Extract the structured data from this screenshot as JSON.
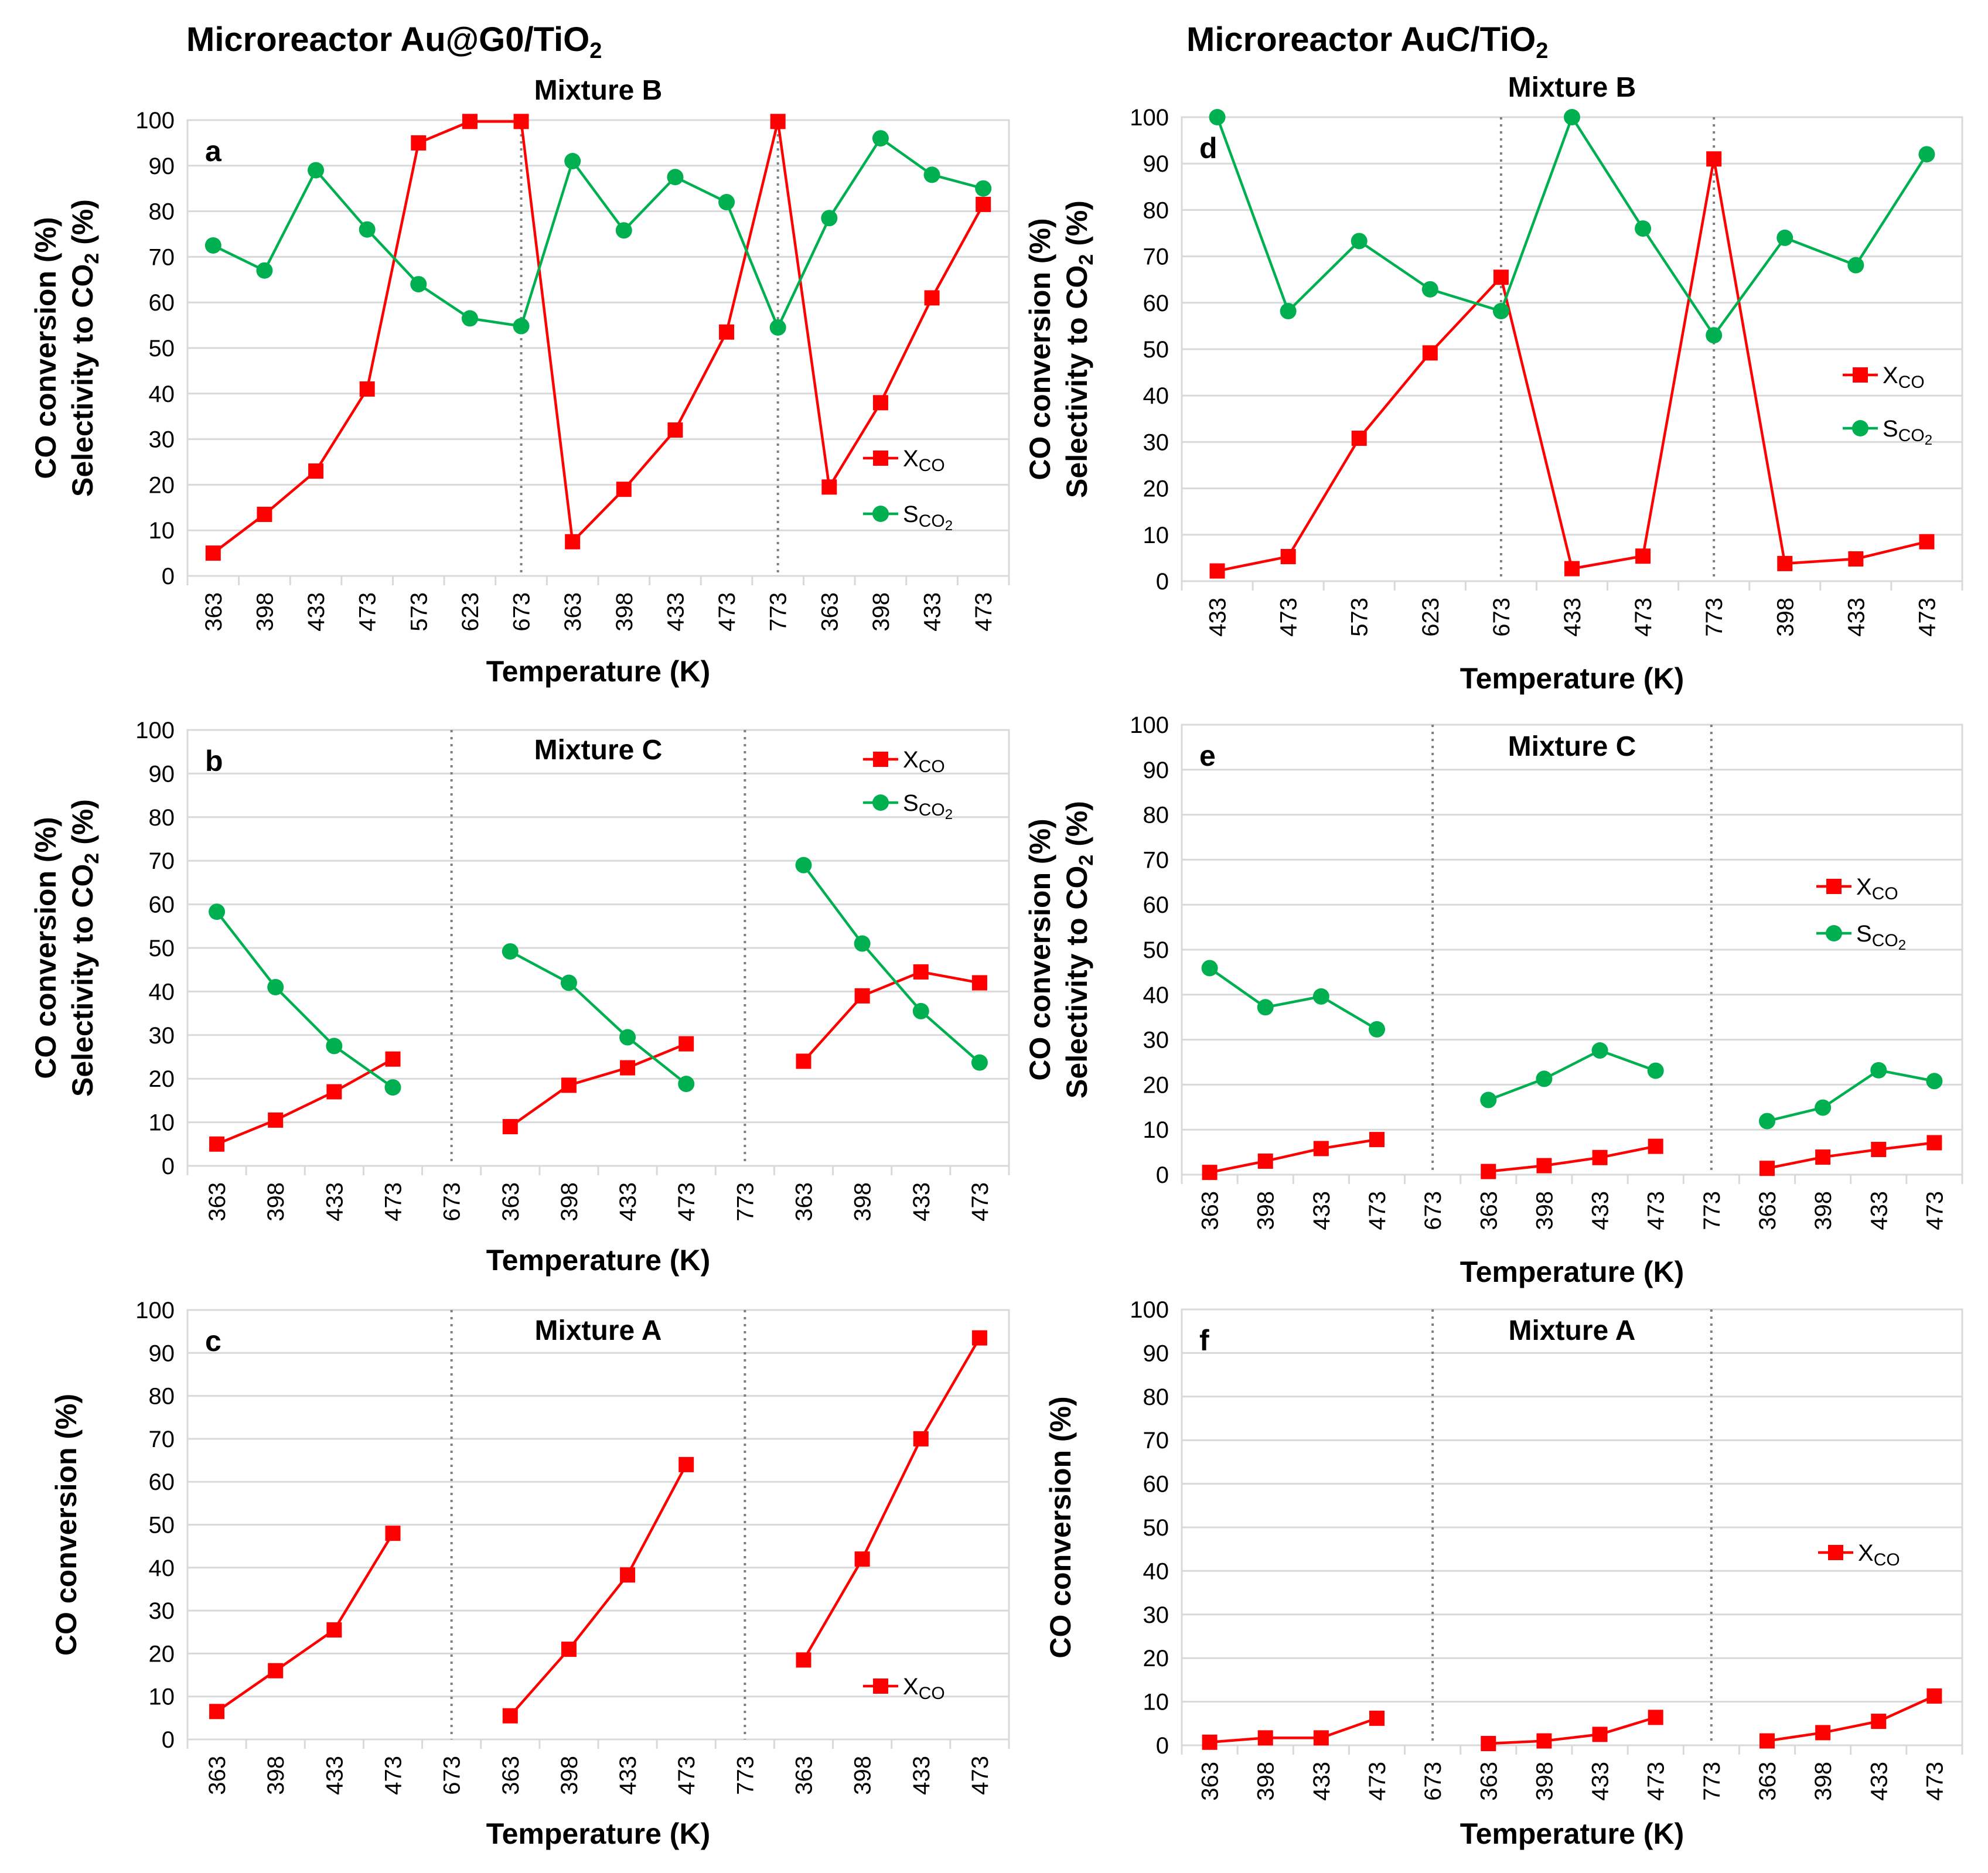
{
  "headings": {
    "left": {
      "main": "Microreactor Au@G0/TiO",
      "sub": "2"
    },
    "right": {
      "main": "Microreactor AuC/TiO",
      "sub": "2"
    }
  },
  "legend_labels": {
    "X": {
      "main": "X",
      "sub": "CO"
    },
    "S": {
      "main": "S",
      "sub": "CO",
      "subsub": "2"
    }
  },
  "axis_text": {
    "temperature": "Temperature (K)",
    "co_conversion": "CO conversion (%)",
    "selectivity_main": "Selectivity to CO",
    "selectivity_sub": "2",
    "selectivity_end": " (%)"
  },
  "colors": {
    "X": "#ff0000",
    "S": "#00b050",
    "grid": "#d9d9d9",
    "divider": "#7f7f7f"
  },
  "chart_data": [
    {
      "panel": "a",
      "type": "line",
      "mixture": "Mixture B",
      "catalyst": "Au@G0/TiO2",
      "ylim": [
        0,
        100
      ],
      "yticks": [
        0,
        10,
        20,
        30,
        40,
        50,
        60,
        70,
        80,
        90,
        100
      ],
      "xlabel": "Temperature (K)",
      "ylabel": "CO conversion (%) / Selectivity to CO2 (%)",
      "categories": [
        "363",
        "398",
        "433",
        "473",
        "573",
        "623",
        "673",
        "363",
        "398",
        "433",
        "473",
        "773",
        "363",
        "398",
        "433",
        "473"
      ],
      "dividers_after_index": [
        6,
        11
      ],
      "series": [
        {
          "name": "XCO",
          "marker": "square",
          "values": [
            5,
            13.5,
            23,
            41,
            95,
            99.7,
            99.7,
            7.5,
            19,
            32,
            53.5,
            99.7,
            19.5,
            38,
            61,
            81.5
          ]
        },
        {
          "name": "SCO2",
          "marker": "circle",
          "values": [
            72.5,
            67,
            89,
            76,
            64,
            56.5,
            54.8,
            91,
            75.8,
            87.5,
            82,
            54.5,
            78.5,
            96,
            88,
            85
          ]
        }
      ]
    },
    {
      "panel": "b",
      "type": "line",
      "mixture": "Mixture C",
      "catalyst": "Au@G0/TiO2",
      "ylim": [
        0,
        100
      ],
      "yticks": [
        0,
        10,
        20,
        30,
        40,
        50,
        60,
        70,
        80,
        90,
        100
      ],
      "xlabel": "Temperature (K)",
      "ylabel": "CO conversion (%) / Selectivity to CO2 (%)",
      "categories": [
        "363",
        "398",
        "433",
        "473",
        "673",
        "363",
        "398",
        "433",
        "473",
        "773",
        "363",
        "398",
        "433",
        "473"
      ],
      "dividers_at_index": [
        4,
        9
      ],
      "series": [
        {
          "name": "XCO",
          "marker": "square",
          "values": [
            5,
            10.5,
            17,
            24.5,
            null,
            9,
            18.5,
            22.5,
            28,
            null,
            24,
            39,
            44.5,
            42
          ]
        },
        {
          "name": "SCO2",
          "marker": "circle",
          "values": [
            58.3,
            41,
            27.5,
            18,
            null,
            49.2,
            42,
            29.5,
            18.8,
            null,
            69,
            51,
            35.5,
            23.7
          ]
        }
      ]
    },
    {
      "panel": "c",
      "type": "line",
      "mixture": "Mixture A",
      "catalyst": "Au@G0/TiO2",
      "ylim": [
        0,
        100
      ],
      "yticks": [
        0,
        10,
        20,
        30,
        40,
        50,
        60,
        70,
        80,
        90,
        100
      ],
      "xlabel": "Temperature (K)",
      "ylabel": "CO conversion (%)",
      "categories": [
        "363",
        "398",
        "433",
        "473",
        "673",
        "363",
        "398",
        "433",
        "473",
        "773",
        "363",
        "398",
        "433",
        "473"
      ],
      "dividers_at_index": [
        4,
        9
      ],
      "series": [
        {
          "name": "XCO",
          "marker": "square",
          "values": [
            6.5,
            16,
            25.5,
            48,
            null,
            5.5,
            21,
            38.3,
            64,
            null,
            18.5,
            42,
            70,
            93.5
          ]
        }
      ]
    },
    {
      "panel": "d",
      "type": "line",
      "mixture": "Mixture B",
      "catalyst": "AuC/TiO2",
      "ylim": [
        0,
        100
      ],
      "yticks": [
        0,
        10,
        20,
        30,
        40,
        50,
        60,
        70,
        80,
        90,
        100
      ],
      "xlabel": "Temperature (K)",
      "ylabel": "CO conversion (%) / Selectivity to CO2 (%)",
      "categories": [
        "433",
        "473",
        "573",
        "623",
        "673",
        "433",
        "473",
        "773",
        "398",
        "433",
        "473"
      ],
      "dividers_after_index": [
        4,
        7
      ],
      "series": [
        {
          "name": "XCO",
          "marker": "square",
          "values": [
            2.2,
            5.3,
            30.8,
            49.2,
            65.5,
            2.7,
            5.4,
            91,
            3.8,
            4.8,
            8.5
          ]
        },
        {
          "name": "SCO2",
          "marker": "circle",
          "values": [
            100,
            58.2,
            73.3,
            62.9,
            58.2,
            100,
            76,
            53,
            74,
            68.1,
            92
          ]
        }
      ]
    },
    {
      "panel": "e",
      "type": "line",
      "mixture": "Mixture C",
      "catalyst": "AuC/TiO2",
      "ylim": [
        0,
        100
      ],
      "yticks": [
        0,
        10,
        20,
        30,
        40,
        50,
        60,
        70,
        80,
        90,
        100
      ],
      "xlabel": "Temperature (K)",
      "ylabel": "CO conversion (%) / Selectivity to CO2 (%)",
      "categories": [
        "363",
        "398",
        "433",
        "473",
        "673",
        "363",
        "398",
        "433",
        "473",
        "773",
        "363",
        "398",
        "433",
        "473"
      ],
      "dividers_at_index": [
        4,
        9
      ],
      "series": [
        {
          "name": "XCO",
          "marker": "square",
          "values": [
            0.5,
            3,
            5.8,
            7.8,
            null,
            0.7,
            2,
            3.8,
            6.3,
            null,
            1.4,
            3.9,
            5.6,
            7.1
          ]
        },
        {
          "name": "SCO2",
          "marker": "circle",
          "values": [
            45.9,
            37.2,
            39.6,
            32.3,
            null,
            16.6,
            21.3,
            27.6,
            23.1,
            null,
            11.9,
            14.9,
            23.2,
            20.8
          ]
        }
      ]
    },
    {
      "panel": "f",
      "type": "line",
      "mixture": "Mixture A",
      "catalyst": "AuC/TiO2",
      "ylim": [
        0,
        100
      ],
      "yticks": [
        0,
        10,
        20,
        30,
        40,
        50,
        60,
        70,
        80,
        90,
        100
      ],
      "xlabel": "Temperature (K)",
      "ylabel": "CO conversion (%)",
      "categories": [
        "363",
        "398",
        "433",
        "473",
        "673",
        "363",
        "398",
        "433",
        "473",
        "773",
        "363",
        "398",
        "433",
        "473"
      ],
      "dividers_at_index": [
        4,
        9
      ],
      "series": [
        {
          "name": "XCO",
          "marker": "square",
          "values": [
            0.7,
            1.7,
            1.7,
            6.2,
            null,
            0.4,
            1,
            2.5,
            6.4,
            null,
            1,
            2.9,
            5.5,
            11.3
          ]
        }
      ]
    }
  ]
}
